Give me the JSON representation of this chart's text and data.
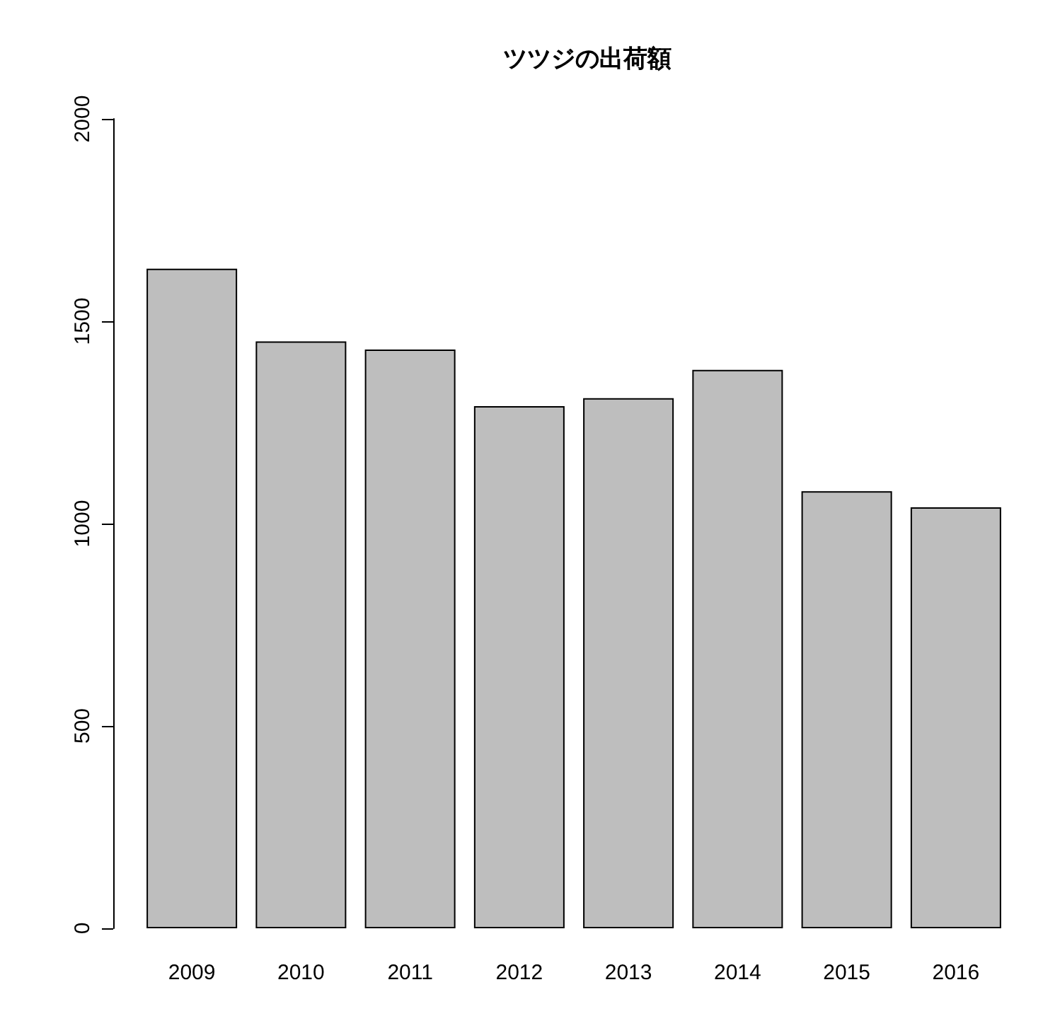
{
  "chart_data": {
    "type": "bar",
    "title": "ツツジの出荷額",
    "categories": [
      "2009",
      "2010",
      "2011",
      "2012",
      "2013",
      "2014",
      "2015",
      "2016"
    ],
    "values": [
      1630,
      1450,
      1430,
      1290,
      1310,
      1380,
      1080,
      1040
    ],
    "color": "#bebebe",
    "ylim": [
      0,
      2000
    ],
    "yticks": [
      0,
      500,
      1000,
      1500,
      2000
    ],
    "grid": false
  }
}
